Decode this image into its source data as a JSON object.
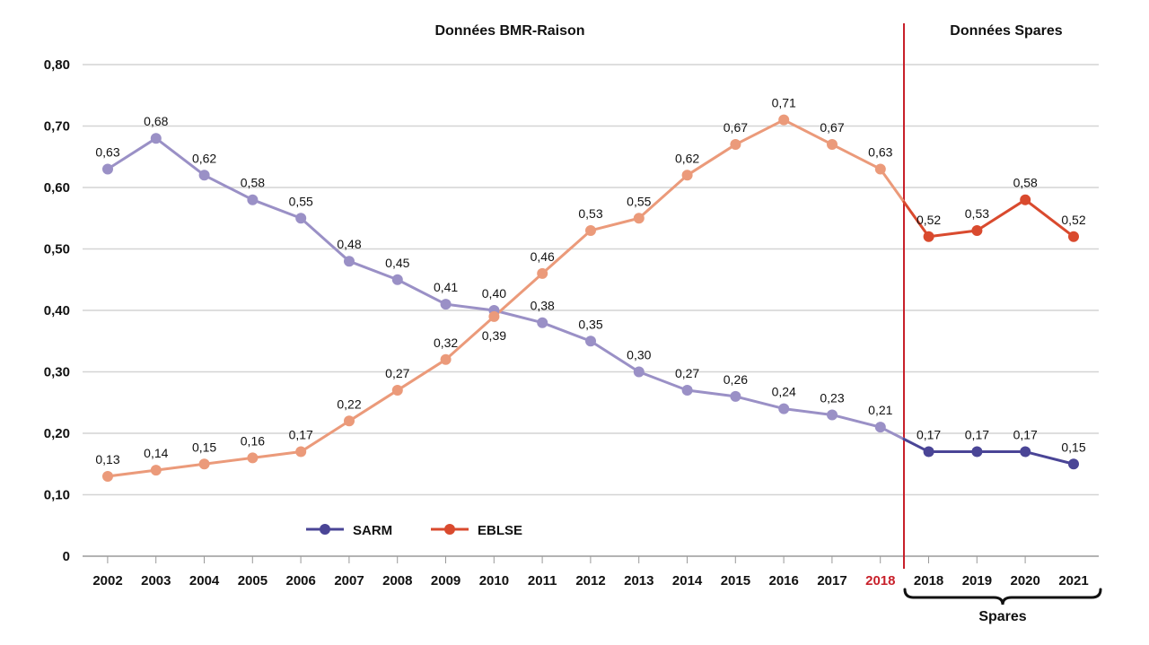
{
  "chart_data": {
    "type": "line",
    "x_categories": [
      "2002",
      "2003",
      "2004",
      "2005",
      "2006",
      "2007",
      "2008",
      "2009",
      "2010",
      "2011",
      "2012",
      "2013",
      "2014",
      "2015",
      "2016",
      "2017",
      "2018",
      "2018",
      "2019",
      "2020",
      "2021"
    ],
    "highlight_category_index": 16,
    "highlight_color": "#c8202a",
    "y_ticks": [
      "0",
      "0,10",
      "0,20",
      "0,30",
      "0,40",
      "0,50",
      "0,60",
      "0,70",
      "0,80"
    ],
    "ylim": [
      0,
      0.8
    ],
    "grid": true,
    "section_labels": {
      "left": "Données BMR-Raison",
      "right": "Données Spares"
    },
    "bracket_label": "Spares",
    "divider_color": "#c8202a",
    "legend": {
      "placement": "bottom-left",
      "items": [
        {
          "label": "SARM",
          "color": "#4a4596"
        },
        {
          "label": "EBLSE",
          "color": "#d94a2e"
        }
      ]
    },
    "series": [
      {
        "name": "SARM",
        "segments": [
          {
            "source": "BMR-Raison",
            "color": "#9a90c6",
            "start_index": 0,
            "values": [
              0.63,
              0.68,
              0.62,
              0.58,
              0.55,
              0.48,
              0.45,
              0.41,
              0.4,
              0.38,
              0.35,
              0.3,
              0.27,
              0.26,
              0.24,
              0.23,
              0.21
            ],
            "labels": [
              "0,63",
              "0,68",
              "0,62",
              "0,58",
              "0,55",
              "0,48",
              "0,45",
              "0,41",
              "0,40",
              "0,38",
              "0,35",
              "0,30",
              "0,27",
              "0,26",
              "0,24",
              "0,23",
              "0,21"
            ]
          },
          {
            "source": "Spares",
            "color": "#4a4596",
            "start_index": 17,
            "values": [
              0.17,
              0.17,
              0.17,
              0.15
            ],
            "labels": [
              "0,17",
              "0,17",
              "0,17",
              "0,15"
            ]
          }
        ]
      },
      {
        "name": "EBLSE",
        "segments": [
          {
            "source": "BMR-Raison",
            "color": "#eb9a7a",
            "start_index": 0,
            "values": [
              0.13,
              0.14,
              0.15,
              0.16,
              0.17,
              0.22,
              0.27,
              0.32,
              0.39,
              0.46,
              0.53,
              0.55,
              0.62,
              0.67,
              0.71,
              0.67,
              0.63
            ],
            "labels": [
              "0,13",
              "0,14",
              "0,15",
              "0,16",
              "0,17",
              "0,22",
              "0,27",
              "0,32",
              "0,39",
              "0,46",
              "0,53",
              "0,55",
              "0,62",
              "0,67",
              "0,71",
              "0,67",
              "0,63"
            ]
          },
          {
            "source": "Spares",
            "color": "#d94a2e",
            "start_index": 17,
            "values": [
              0.52,
              0.53,
              0.58,
              0.52
            ],
            "labels": [
              "0,52",
              "0,53",
              "0,58",
              "0,52"
            ]
          }
        ]
      }
    ]
  }
}
